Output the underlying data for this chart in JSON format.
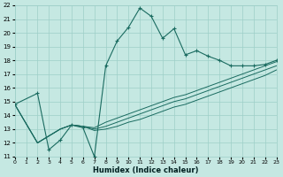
{
  "xlabel": "Humidex (Indice chaleur)",
  "xlim": [
    0,
    23
  ],
  "ylim": [
    11,
    22
  ],
  "xticks": [
    0,
    1,
    2,
    3,
    4,
    5,
    6,
    7,
    8,
    9,
    10,
    11,
    12,
    13,
    14,
    15,
    16,
    17,
    18,
    19,
    20,
    21,
    22,
    23
  ],
  "yticks": [
    11,
    12,
    13,
    14,
    15,
    16,
    17,
    18,
    19,
    20,
    21,
    22
  ],
  "bg_color": "#c5e8e2",
  "grid_color": "#9ecfc8",
  "line_color": "#1a6b60",
  "main_x": [
    0,
    2,
    3,
    4,
    5,
    6,
    7,
    8,
    9,
    10,
    11,
    12,
    13,
    14,
    15,
    16,
    17,
    18,
    19,
    20,
    21,
    22,
    23
  ],
  "main_y": [
    14.8,
    15.6,
    11.5,
    12.2,
    13.3,
    13.1,
    11.0,
    17.6,
    19.4,
    20.4,
    21.8,
    21.2,
    19.6,
    20.3,
    18.4,
    18.7,
    18.3,
    18.0,
    17.6,
    17.6,
    17.6,
    17.7,
    18.0
  ],
  "reg1_x": [
    0,
    2,
    3,
    4,
    5,
    6,
    7,
    8,
    9,
    10,
    11,
    12,
    13,
    14,
    15,
    16,
    17,
    18,
    19,
    20,
    21,
    22,
    23
  ],
  "reg1_y": [
    14.8,
    12.0,
    12.5,
    13.0,
    13.3,
    13.2,
    13.1,
    13.5,
    13.8,
    14.1,
    14.4,
    14.7,
    15.0,
    15.3,
    15.5,
    15.8,
    16.1,
    16.4,
    16.7,
    17.0,
    17.3,
    17.6,
    17.9
  ],
  "reg2_x": [
    0,
    2,
    3,
    4,
    5,
    6,
    7,
    8,
    9,
    10,
    11,
    12,
    13,
    14,
    15,
    16,
    17,
    18,
    19,
    20,
    21,
    22,
    23
  ],
  "reg2_y": [
    14.8,
    12.0,
    12.5,
    13.0,
    13.3,
    13.2,
    13.0,
    13.2,
    13.5,
    13.8,
    14.1,
    14.4,
    14.7,
    15.0,
    15.2,
    15.5,
    15.8,
    16.1,
    16.4,
    16.7,
    17.0,
    17.3,
    17.6
  ],
  "reg3_x": [
    0,
    2,
    3,
    4,
    5,
    6,
    7,
    8,
    9,
    10,
    11,
    12,
    13,
    14,
    15,
    16,
    17,
    18,
    19,
    20,
    21,
    22,
    23
  ],
  "reg3_y": [
    14.8,
    12.0,
    12.5,
    13.0,
    13.3,
    13.2,
    12.9,
    13.0,
    13.2,
    13.5,
    13.7,
    14.0,
    14.3,
    14.6,
    14.8,
    15.1,
    15.4,
    15.7,
    16.0,
    16.3,
    16.6,
    16.9,
    17.3
  ]
}
